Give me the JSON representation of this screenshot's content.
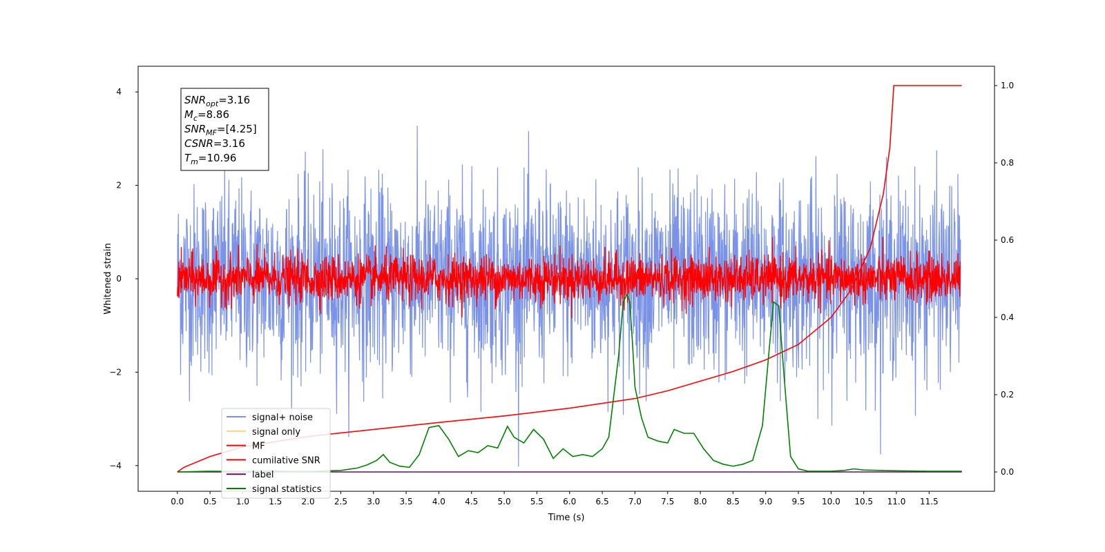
{
  "chart_data": {
    "type": "line",
    "xlabel": "Time (s)",
    "ylabel": "Whitened strain",
    "xlim": [
      -0.6,
      12.5
    ],
    "ylim": [
      -4.55,
      4.55
    ],
    "y2lim": [
      -0.05,
      1.05
    ],
    "x_ticks": [
      "0.0",
      "0.5",
      "1.0",
      "1.5",
      "2.0",
      "2.5",
      "3.0",
      "3.5",
      "4.0",
      "4.5",
      "5.0",
      "5.5",
      "6.0",
      "6.5",
      "7.0",
      "7.5",
      "8.0",
      "8.5",
      "9.0",
      "9.5",
      "10.0",
      "10.5",
      "11.0",
      "11.5"
    ],
    "y_ticks": [
      "4",
      "2",
      "0",
      "−2",
      "−4"
    ],
    "y2_ticks": [
      "1.0",
      "0.8",
      "0.6",
      "0.4",
      "0.2",
      "0.0"
    ],
    "legend_position": "lower-left",
    "info_box": [
      {
        "main": "SNR",
        "sub": "opt",
        "value": "=3.16"
      },
      {
        "main": "M",
        "sub": "c",
        "value": "=8.86"
      },
      {
        "main": "SNR",
        "sub": "MF",
        "value": "=[4.25]"
      },
      {
        "main": "CSNR",
        "sub": "",
        "value": "=3.16"
      },
      {
        "main": "T",
        "sub": "m",
        "value": "=10.96"
      }
    ],
    "series": [
      {
        "name": "signal+ noise",
        "color": "#7a93e8",
        "axis": "left",
        "kind": "noise",
        "sigma": 1.0
      },
      {
        "name": "signal only",
        "color": "#ffd27f",
        "axis": "left",
        "kind": "none"
      },
      {
        "name": "MF",
        "color": "#ff0000",
        "axis": "left",
        "kind": "noise",
        "sigma": 0.25
      },
      {
        "name": "cumilative SNR",
        "color": "#ff0000",
        "axis": "right",
        "x": [
          0.0,
          0.1,
          0.5,
          1.0,
          2.0,
          3.0,
          4.0,
          5.0,
          6.0,
          7.0,
          7.5,
          8.0,
          8.5,
          9.0,
          9.5,
          10.0,
          10.3,
          10.6,
          10.8,
          10.9,
          10.96,
          11.0,
          11.5,
          12.0
        ],
        "y": [
          0.0,
          0.012,
          0.04,
          0.065,
          0.092,
          0.11,
          0.128,
          0.145,
          0.165,
          0.19,
          0.21,
          0.235,
          0.26,
          0.29,
          0.33,
          0.4,
          0.47,
          0.58,
          0.72,
          0.84,
          1.0,
          1.0,
          1.0,
          1.0
        ]
      },
      {
        "name": "label",
        "color": "#6a0a6a",
        "axis": "right",
        "x": [
          0.0,
          12.0
        ],
        "y": [
          0.0,
          0.0
        ]
      },
      {
        "name": "signal statistics",
        "color": "#008000",
        "axis": "right",
        "x": [
          0.0,
          0.5,
          1.0,
          1.5,
          2.0,
          2.5,
          2.75,
          2.9,
          3.05,
          3.15,
          3.25,
          3.4,
          3.55,
          3.7,
          3.85,
          4.0,
          4.15,
          4.3,
          4.45,
          4.6,
          4.75,
          4.9,
          5.05,
          5.15,
          5.3,
          5.45,
          5.6,
          5.75,
          5.9,
          6.05,
          6.2,
          6.35,
          6.5,
          6.6,
          6.75,
          6.82,
          6.88,
          6.92,
          6.96,
          7.0,
          7.1,
          7.2,
          7.35,
          7.5,
          7.6,
          7.75,
          7.9,
          8.05,
          8.2,
          8.35,
          8.5,
          8.65,
          8.8,
          8.95,
          9.05,
          9.12,
          9.2,
          9.28,
          9.38,
          9.5,
          9.65,
          10.0,
          10.2,
          10.35,
          10.5,
          11.0,
          11.5,
          12.0
        ],
        "y": [
          0.0,
          0.002,
          0.001,
          0.002,
          0.001,
          0.004,
          0.01,
          0.018,
          0.03,
          0.045,
          0.025,
          0.015,
          0.012,
          0.045,
          0.115,
          0.12,
          0.085,
          0.04,
          0.055,
          0.05,
          0.068,
          0.062,
          0.118,
          0.09,
          0.075,
          0.11,
          0.085,
          0.035,
          0.06,
          0.04,
          0.045,
          0.04,
          0.06,
          0.09,
          0.3,
          0.44,
          0.46,
          0.44,
          0.34,
          0.22,
          0.14,
          0.09,
          0.08,
          0.075,
          0.11,
          0.1,
          0.1,
          0.06,
          0.03,
          0.02,
          0.015,
          0.02,
          0.03,
          0.12,
          0.31,
          0.44,
          0.43,
          0.25,
          0.04,
          0.008,
          0.002,
          0.002,
          0.004,
          0.008,
          0.005,
          0.003,
          0.002,
          0.002
        ]
      }
    ]
  }
}
